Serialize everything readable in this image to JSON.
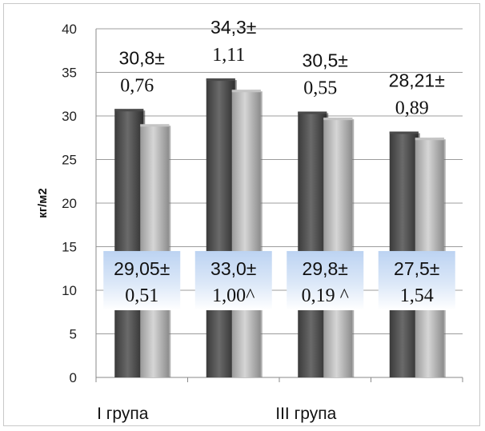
{
  "chart_data": {
    "type": "bar",
    "ylabel": "кг/м2",
    "ylim": [
      0,
      40
    ],
    "yticks": [
      "0",
      "5",
      "10",
      "15",
      "20",
      "25",
      "30",
      "35",
      "40"
    ],
    "grid": true,
    "category_labels": [
      "I група",
      "",
      "III група",
      ""
    ],
    "series": [
      {
        "values": [
          30.8,
          34.3,
          30.5,
          28.21
        ],
        "color": "#555555"
      },
      {
        "values": [
          29.05,
          33.0,
          29.8,
          27.5
        ],
        "color": "#b8b8b8"
      }
    ],
    "labels_top": [
      {
        "line1": "30,8±",
        "line2": "0,76"
      },
      {
        "line1": "34,3±",
        "line2": "1,11"
      },
      {
        "line1": "30,5±",
        "line2": "0,55"
      },
      {
        "line1": "28,21±",
        "line2": "0,89"
      }
    ],
    "labels_bottom": [
      {
        "line1": "29,05±",
        "line2": "0,51"
      },
      {
        "line1": "33,0±",
        "line2": "1,00^"
      },
      {
        "line1": "29,8±",
        "line2": "0,19 ^"
      },
      {
        "line1": "27,5±",
        "line2": "1,54"
      }
    ]
  }
}
